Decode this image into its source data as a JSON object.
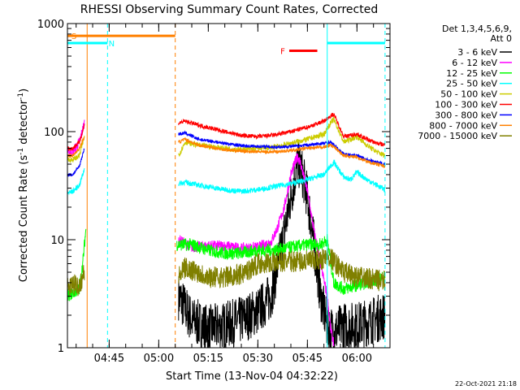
{
  "chart_data": {
    "type": "line",
    "title": "RHESSI Observing Summary Count Rates, Corrected",
    "xlabel": "Start Time (13-Nov-04 04:32:22)",
    "ylabel_main": "Corrected Count Rate (s",
    "ylabel_sup1": "-1",
    "ylabel_mid": " detector",
    "ylabel_sup2": "-1",
    "ylabel_end": ")",
    "y_scale": "log",
    "ylim": [
      1,
      1000
    ],
    "xlim": [
      "04:32:22",
      "06:10:00"
    ],
    "x_ticks": [
      "04:45",
      "05:00",
      "05:15",
      "05:30",
      "05:45",
      "06:00"
    ],
    "y_ticks": [
      "1",
      "10",
      "100",
      "1000"
    ],
    "timestamp": "22-Oct-2021 21:18",
    "legend": {
      "placement": "right",
      "header1": "Det 1,3,4,5,6,9,",
      "header2": "Att 0",
      "entries": [
        {
          "label": "3 - 6 keV",
          "color": "#000000"
        },
        {
          "label": "6 - 12 keV",
          "color": "#ff00ff"
        },
        {
          "label": "12 - 25 keV",
          "color": "#00ff00"
        },
        {
          "label": "25 - 50 keV",
          "color": "#00ffff"
        },
        {
          "label": "50 - 100 keV",
          "color": "#cccc00"
        },
        {
          "label": "100 - 300 keV",
          "color": "#ff0000"
        },
        {
          "label": "300 - 800 keV",
          "color": "#0000ff"
        },
        {
          "label": "800 - 7000 keV",
          "color": "#ff8000"
        },
        {
          "label": "7000 - 15000 keV",
          "color": "#808000"
        }
      ]
    },
    "flags": [
      {
        "label": "S",
        "color": "#ff8000",
        "start": "04:32:22",
        "end": "05:05:00",
        "level": 770
      },
      {
        "label": "N",
        "color": "#00ffff",
        "start": "04:32:22",
        "end": "04:44:30",
        "level": 660
      },
      {
        "label": "F",
        "color": "#ff0000",
        "start": "05:39:30",
        "end": "05:48:00",
        "level": 560
      },
      {
        "label": "",
        "color": "#00ffff",
        "start": "05:51:00",
        "end": "06:08:30",
        "level": 660
      }
    ],
    "markers": [
      {
        "time": "04:44:30",
        "color": "#00ffff",
        "style": "dashed"
      },
      {
        "time": "05:05:00",
        "color": "#ff8000",
        "style": "dashed"
      },
      {
        "time": "06:08:30",
        "color": "#00ffff",
        "style": "dashed"
      },
      {
        "time": "04:38:20",
        "color": "#ff8000",
        "style": "solid"
      },
      {
        "time": "05:51:00",
        "color": "#00ffff",
        "style": "solid"
      }
    ],
    "series": [
      {
        "name": "3 - 6 keV",
        "color": "#000000",
        "noise": 0.45,
        "segments": [
          [
            [
              "05:06:00",
              3
            ],
            [
              "05:10:00",
              1.8
            ],
            [
              "05:15:00",
              1.5
            ],
            [
              "05:20:00",
              1.6
            ],
            [
              "05:25:00",
              1.8
            ],
            [
              "05:30:00",
              2.2
            ],
            [
              "05:34:00",
              3
            ],
            [
              "05:37:00",
              8
            ],
            [
              "05:40:00",
              25
            ],
            [
              "05:42:00",
              50
            ],
            [
              "05:43:00",
              47
            ],
            [
              "05:45:00",
              25
            ],
            [
              "05:47:00",
              9
            ],
            [
              "05:49:00",
              3
            ],
            [
              "05:51:00",
              1.6
            ],
            [
              "05:53:00",
              1.4
            ],
            [
              "05:56:00",
              1.6
            ],
            [
              "06:00:00",
              1.6
            ],
            [
              "06:05:00",
              1.8
            ],
            [
              "06:08:30",
              2.0
            ]
          ]
        ]
      },
      {
        "name": "6 - 12 keV",
        "color": "#ff00ff",
        "noise": 0.1,
        "segments": [
          [
            [
              "04:32:22",
              65
            ],
            [
              "04:34:00",
              65
            ],
            [
              "04:36:00",
              80
            ],
            [
              "04:37:30",
              120
            ]
          ],
          [
            [
              "05:06:00",
              10
            ],
            [
              "05:10:00",
              8.5
            ],
            [
              "05:15:00",
              8.8
            ],
            [
              "05:20:00",
              8.8
            ],
            [
              "05:25:00",
              8.3
            ],
            [
              "05:30:00",
              8.5
            ],
            [
              "05:34:00",
              9.5
            ],
            [
              "05:36:00",
              13
            ],
            [
              "05:38:00",
              20
            ],
            [
              "05:40:00",
              40
            ],
            [
              "05:42:00",
              60
            ],
            [
              "05:43:00",
              50
            ],
            [
              "05:45:00",
              28
            ],
            [
              "05:47:00",
              12
            ],
            [
              "05:49:00",
              6
            ],
            [
              "05:51:00",
              3
            ],
            [
              "05:52:00",
              1.5
            ],
            [
              "05:53:00",
              1.1
            ]
          ]
        ]
      },
      {
        "name": "12 - 25 keV",
        "color": "#00ff00",
        "noise": 0.12,
        "segments": [
          [
            [
              "04:32:22",
              3
            ],
            [
              "04:36:00",
              3.5
            ],
            [
              "04:37:00",
              6
            ],
            [
              "04:38:00",
              13
            ]
          ],
          [
            [
              "05:05:30",
              9
            ],
            [
              "05:10:00",
              9
            ],
            [
              "05:15:00",
              8
            ],
            [
              "05:20:00",
              7.5
            ],
            [
              "05:25:00",
              7.5
            ],
            [
              "05:30:00",
              8
            ],
            [
              "05:35:00",
              8
            ],
            [
              "05:40:00",
              8.5
            ],
            [
              "05:45:00",
              9
            ],
            [
              "05:49:00",
              9
            ],
            [
              "05:51:00",
              10
            ],
            [
              "05:53:00",
              4
            ],
            [
              "05:56:00",
              3.5
            ],
            [
              "06:00:00",
              3.8
            ],
            [
              "06:05:00",
              4.2
            ],
            [
              "06:08:30",
              4.5
            ]
          ]
        ]
      },
      {
        "name": "25 - 50 keV",
        "color": "#00ffff",
        "noise": 0.05,
        "segments": [
          [
            [
              "04:32:22",
              27
            ],
            [
              "04:34:00",
              28
            ],
            [
              "04:36:00",
              32
            ],
            [
              "04:37:30",
              45
            ]
          ],
          [
            [
              "05:06:00",
              33
            ],
            [
              "05:08:00",
              34
            ],
            [
              "05:12:00",
              32
            ],
            [
              "05:20:00",
              29
            ],
            [
              "05:25:00",
              28
            ],
            [
              "05:30:00",
              29
            ],
            [
              "05:35:00",
              31
            ],
            [
              "05:40:00",
              33
            ],
            [
              "05:45:00",
              36
            ],
            [
              "05:50:00",
              40
            ],
            [
              "05:52:00",
              48
            ],
            [
              "05:53:00",
              52
            ],
            [
              "05:56:00",
              38
            ],
            [
              "05:58:00",
              36
            ],
            [
              "06:00:00",
              42
            ],
            [
              "06:03:00",
              36
            ],
            [
              "06:06:00",
              32
            ],
            [
              "06:08:30",
              29
            ]
          ]
        ]
      },
      {
        "name": "50 - 100 keV",
        "color": "#cccc00",
        "noise": 0.05,
        "segments": [
          [
            [
              "04:32:22",
              55
            ],
            [
              "04:34:00",
              55
            ],
            [
              "04:36:00",
              60
            ],
            [
              "04:37:30",
              90
            ]
          ],
          [
            [
              "05:06:00",
              60
            ],
            [
              "05:08:00",
              80
            ],
            [
              "05:12:00",
              75
            ],
            [
              "05:20:00",
              70
            ],
            [
              "05:25:00",
              68
            ],
            [
              "05:30:00",
              70
            ],
            [
              "05:35:00",
              72
            ],
            [
              "05:40:00",
              78
            ],
            [
              "05:45:00",
              85
            ],
            [
              "05:50:00",
              95
            ],
            [
              "05:52:00",
              120
            ],
            [
              "05:53:00",
              130
            ],
            [
              "05:56:00",
              80
            ],
            [
              "06:00:00",
              90
            ],
            [
              "06:03:00",
              75
            ],
            [
              "06:06:00",
              65
            ],
            [
              "06:08:30",
              60
            ]
          ]
        ]
      },
      {
        "name": "100 - 300 keV",
        "color": "#ff0000",
        "noise": 0.04,
        "segments": [
          [
            [
              "04:32:22",
              70
            ],
            [
              "04:34:00",
              70
            ],
            [
              "04:36:00",
              80
            ],
            [
              "04:37:30",
              115
            ]
          ],
          [
            [
              "05:06:00",
              120
            ],
            [
              "05:08:00",
              125
            ],
            [
              "05:12:00",
              115
            ],
            [
              "05:20:00",
              100
            ],
            [
              "05:25:00",
              92
            ],
            [
              "05:30:00",
              90
            ],
            [
              "05:35:00",
              93
            ],
            [
              "05:40:00",
              100
            ],
            [
              "05:45:00",
              110
            ],
            [
              "05:50:00",
              125
            ],
            [
              "05:52:00",
              140
            ],
            [
              "05:53:00",
              145
            ],
            [
              "05:56:00",
              90
            ],
            [
              "06:00:00",
              95
            ],
            [
              "06:03:00",
              85
            ],
            [
              "06:06:00",
              78
            ],
            [
              "06:08:30",
              75
            ]
          ]
        ]
      },
      {
        "name": "300 - 800 keV",
        "color": "#0000ff",
        "noise": 0.03,
        "segments": [
          [
            [
              "04:32:22",
              40
            ],
            [
              "04:34:00",
              40
            ],
            [
              "04:36:00",
              48
            ],
            [
              "04:37:30",
              70
            ]
          ],
          [
            [
              "05:06:00",
              95
            ],
            [
              "05:08:00",
              97
            ],
            [
              "05:12:00",
              85
            ],
            [
              "05:20:00",
              78
            ],
            [
              "05:25:00",
              74
            ],
            [
              "05:30:00",
              73
            ],
            [
              "05:35:00",
              72
            ],
            [
              "05:40:00",
              73
            ],
            [
              "05:45:00",
              75
            ],
            [
              "05:50:00",
              78
            ],
            [
              "05:52:00",
              80
            ],
            [
              "05:53:00",
              75
            ],
            [
              "05:56:00",
              62
            ],
            [
              "06:00:00",
              60
            ],
            [
              "06:03:00",
              55
            ],
            [
              "06:06:00",
              52
            ],
            [
              "06:08:30",
              50
            ]
          ]
        ]
      },
      {
        "name": "800 - 7000 keV",
        "color": "#ff8000",
        "noise": 0.03,
        "segments": [
          [
            [
              "04:32:22",
              60
            ],
            [
              "04:34:00",
              60
            ],
            [
              "04:36:00",
              70
            ],
            [
              "04:37:30",
              90
            ]
          ],
          [
            [
              "05:06:00",
              80
            ],
            [
              "05:08:00",
              85
            ],
            [
              "05:12:00",
              75
            ],
            [
              "05:20:00",
              68
            ],
            [
              "05:25:00",
              66
            ],
            [
              "05:30:00",
              65
            ],
            [
              "05:35:00",
              65
            ],
            [
              "05:40:00",
              67
            ],
            [
              "05:45:00",
              70
            ],
            [
              "05:50:00",
              72
            ],
            [
              "05:52:00",
              75
            ],
            [
              "05:53:00",
              72
            ],
            [
              "05:56:00",
              60
            ],
            [
              "06:00:00",
              58
            ],
            [
              "06:03:00",
              53
            ],
            [
              "06:06:00",
              50
            ],
            [
              "06:08:30",
              48
            ]
          ]
        ]
      },
      {
        "name": "7000 - 15000 keV",
        "color": "#808000",
        "noise": 0.2,
        "segments": [
          [
            [
              "04:32:22",
              3.5
            ],
            [
              "04:34:00",
              3.8
            ],
            [
              "04:36:00",
              3.8
            ],
            [
              "04:37:30",
              5
            ]
          ],
          [
            [
              "05:06:00",
              4.5
            ],
            [
              "05:08:00",
              5.5
            ],
            [
              "05:12:00",
              5
            ],
            [
              "05:15:00",
              4.5
            ],
            [
              "05:20:00",
              4.5
            ],
            [
              "05:25:00",
              4.8
            ],
            [
              "05:30:00",
              6
            ],
            [
              "05:35:00",
              6.2
            ],
            [
              "05:40:00",
              6.3
            ],
            [
              "05:45:00",
              6.3
            ],
            [
              "05:49:00",
              6.5
            ],
            [
              "05:51:00",
              7
            ],
            [
              "05:52:00",
              6.8
            ],
            [
              "05:56:00",
              5
            ],
            [
              "06:00:00",
              4.5
            ],
            [
              "06:05:00",
              4.3
            ],
            [
              "06:08:30",
              4.1
            ]
          ]
        ]
      }
    ]
  }
}
